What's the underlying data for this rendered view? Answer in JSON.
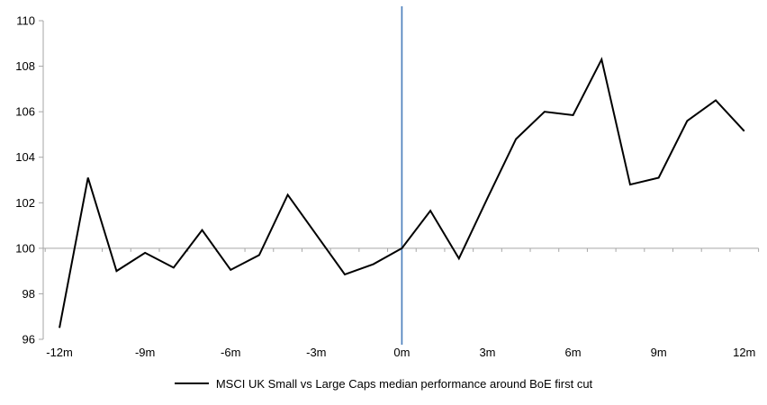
{
  "chart_data": {
    "type": "line",
    "title": "",
    "legend_label": "MSCI UK Small vs Large Caps median performance around BoE first cut",
    "legend_position": "bottom-center",
    "grid": "baseline-only",
    "xlabel": "",
    "ylabel": "",
    "x_unit": "months relative to first cut",
    "xlim": [
      -12.5,
      12.5
    ],
    "ylim": [
      96,
      110
    ],
    "y_ticks": [
      96,
      98,
      100,
      102,
      104,
      106,
      108,
      110
    ],
    "y_tick_labels": [
      "96",
      "98",
      "100",
      "102",
      "104",
      "106",
      "108",
      "110"
    ],
    "x_tick_months": [
      -12,
      -9,
      -6,
      -3,
      0,
      3,
      6,
      9,
      12
    ],
    "x_tick_labels": [
      "-12m",
      "-9m",
      "-6m",
      "-3m",
      "0m",
      "3m",
      "6m",
      "9m",
      "12m"
    ],
    "baseline_value": 100,
    "event_line_month": 0,
    "x": [
      -12,
      -11,
      -10,
      -9,
      -8,
      -7,
      -6,
      -5,
      -4,
      -3,
      -2,
      -1,
      0,
      1,
      2,
      3,
      4,
      5,
      6,
      7,
      8,
      9,
      10,
      11,
      12
    ],
    "series": [
      {
        "name": "MSCI UK Small vs Large Caps median performance around BoE first cut",
        "color": "#000000",
        "values": [
          96.5,
          103.1,
          99.0,
          99.8,
          99.15,
          100.8,
          99.05,
          99.7,
          102.35,
          100.6,
          98.85,
          99.3,
          100.0,
          101.65,
          99.55,
          102.2,
          104.8,
          106.0,
          105.85,
          108.3,
          102.8,
          103.1,
          105.6,
          106.5,
          105.15
        ]
      }
    ],
    "colors": {
      "series_line": "#000000",
      "event_line": "#4f81bd",
      "baseline_line": "#a6a6a6",
      "axis_line": "#a6a6a6",
      "tick_text": "#000000",
      "background": "#ffffff"
    }
  }
}
